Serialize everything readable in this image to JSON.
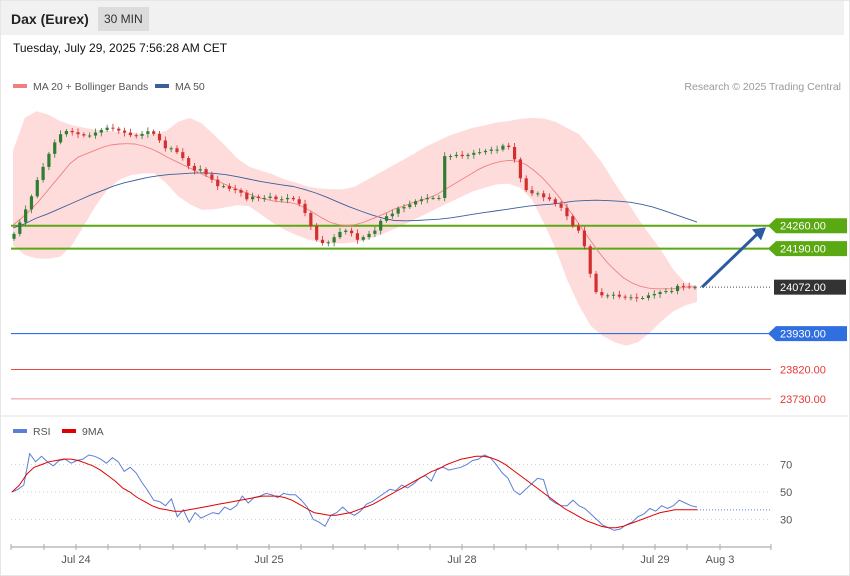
{
  "header": {
    "title": "Dax (Eurex)",
    "timeframe": "30 MIN"
  },
  "datetime": "Tuesday, July 29, 2025 7:56:28 AM CET",
  "legend": {
    "ma20": "MA 20 + Bollinger Bands",
    "ma50": "MA 50",
    "credit": "Research © 2025 Trading Central"
  },
  "rsi_legend": {
    "rsi": "RSI",
    "ma9": "9MA"
  },
  "colors": {
    "ma20": "#f08080",
    "ma50": "#3a5f9a",
    "bands": "#ffd6d6",
    "up": "#2e7d32",
    "down": "#d32f2f",
    "green_level": "#5aa812",
    "blue_level": "#2f6fe0",
    "red_level": "#e53935",
    "arrow": "#2c5aa0",
    "rsi": "#5b7fd6",
    "rsi_ma": "#e00000"
  },
  "chart_data": [
    {
      "type": "candlestick",
      "title": "Dax (Eurex)",
      "timeframe": "30 MIN",
      "x_ticks": [
        "Jul 24",
        "Jul 25",
        "Jul 28",
        "Jul 29",
        "Aug 3"
      ],
      "ylim": [
        23690,
        24660
      ],
      "levels": [
        {
          "value": 24260,
          "label": "24260.00",
          "kind": "resistance",
          "color": "#5aa812"
        },
        {
          "value": 24190,
          "label": "24190.00",
          "kind": "resistance",
          "color": "#5aa812"
        },
        {
          "value": 24072,
          "label": "24072.00",
          "kind": "last",
          "color": "#333333"
        },
        {
          "value": 23930,
          "label": "23930.00",
          "kind": "pivot",
          "color": "#2f6fe0"
        },
        {
          "value": 23820,
          "label": "23820.00",
          "kind": "support",
          "color": "#e53935"
        },
        {
          "value": 23730,
          "label": "23730.00",
          "kind": "support",
          "color": "#e53935"
        }
      ],
      "closes": [
        24235,
        24270,
        24310,
        24350,
        24400,
        24440,
        24480,
        24515,
        24540,
        24550,
        24546,
        24540,
        24536,
        24536,
        24545,
        24553,
        24560,
        24557,
        24551,
        24545,
        24537,
        24535,
        24541,
        24549,
        24541,
        24521,
        24497,
        24497,
        24485,
        24467,
        24443,
        24429,
        24433,
        24417,
        24401,
        24381,
        24381,
        24373,
        24369,
        24361,
        24341,
        24349,
        24345,
        24345,
        24349,
        24341,
        24341,
        24345,
        24341,
        24327,
        24299,
        24259,
        24217,
        24207,
        24209,
        24225,
        24241,
        24245,
        24237,
        24217,
        24225,
        24235,
        24245,
        24275,
        24289,
        24297,
        24313,
        24317,
        24325,
        24335,
        24341,
        24345,
        24345,
        24345,
        24473,
        24473,
        24477,
        24473,
        24477,
        24483,
        24485,
        24489,
        24493,
        24493,
        24505,
        24501,
        24463,
        24405,
        24369,
        24359,
        24359,
        24347,
        24341,
        24327,
        24315,
        24289,
        24259,
        24245,
        24197,
        24113,
        24057,
        24047,
        24047,
        24049,
        24043,
        24041,
        24041,
        24039,
        24039,
        24047,
        24051,
        24057,
        24060,
        24060,
        24076,
        24074,
        24072,
        24072
      ],
      "ma20": [
        24262,
        24282,
        24305,
        24330,
        24360,
        24390,
        24420,
        24450,
        24470,
        24480,
        24490,
        24500,
        24507,
        24510,
        24511,
        24510,
        24504,
        24495,
        24483,
        24469,
        24457,
        24445,
        24433,
        24420,
        24409,
        24398,
        24387,
        24377,
        24367,
        24357,
        24347,
        24341,
        24336,
        24333,
        24331,
        24325,
        24313,
        24298,
        24283,
        24270,
        24263,
        24260,
        24263,
        24270,
        24280,
        24290,
        24301,
        24313,
        24320,
        24330,
        24337,
        24345,
        24355,
        24370,
        24385,
        24400,
        24415,
        24430,
        24442,
        24451,
        24457,
        24460,
        24457,
        24447,
        24429,
        24407,
        24380,
        24350,
        24318,
        24283,
        24247,
        24212,
        24177,
        24147,
        24122,
        24100,
        24085,
        24075,
        24069,
        24067,
        24067,
        24067,
        24070,
        24073,
        24073
      ],
      "ma50": [
        24253,
        24265,
        24282,
        24295,
        24310,
        24325,
        24340,
        24355,
        24368,
        24382,
        24392,
        24400,
        24408,
        24413,
        24417,
        24419,
        24421,
        24422,
        24420,
        24416,
        24410,
        24403,
        24396,
        24390,
        24385,
        24380,
        24371,
        24360,
        24347,
        24332,
        24318,
        24305,
        24293,
        24283,
        24276,
        24275,
        24276,
        24278,
        24280,
        24284,
        24289,
        24295,
        24300,
        24305,
        24310,
        24315,
        24320,
        24323,
        24326,
        24330,
        24335,
        24337,
        24338,
        24337,
        24335,
        24332,
        24326,
        24318,
        24307,
        24295,
        24283,
        24271
      ],
      "bb_upper": [
        24490,
        24590,
        24610,
        24600,
        24580,
        24568,
        24560,
        24553,
        24550,
        24547,
        24544,
        24541,
        24541,
        24550,
        24578,
        24590,
        24573,
        24540,
        24505,
        24466,
        24441,
        24429,
        24418,
        24402,
        24392,
        24380,
        24374,
        24372,
        24371,
        24380,
        24400,
        24420,
        24440,
        24460,
        24480,
        24502,
        24519,
        24536,
        24548,
        24560,
        24567,
        24576,
        24580,
        24587,
        24590,
        24588,
        24578,
        24559,
        24540,
        24497,
        24450,
        24392,
        24338,
        24283,
        24232,
        24183,
        24125,
        24086,
        24073
      ],
      "bb_lower": [
        24200,
        24170,
        24160,
        24159,
        24165,
        24200,
        24260,
        24320,
        24370,
        24400,
        24415,
        24420,
        24420,
        24390,
        24350,
        24326,
        24309,
        24310,
        24316,
        24323,
        24320,
        24295,
        24270,
        24248,
        24232,
        24218,
        24210,
        24206,
        24206,
        24210,
        24217,
        24230,
        24245,
        24260,
        24278,
        24296,
        24314,
        24331,
        24348,
        24365,
        24376,
        24386,
        24389,
        24376,
        24340,
        24270,
        24190,
        24093,
        24015,
        23953,
        23923,
        23904,
        23893,
        23904,
        23932,
        23968,
        23998,
        24016,
        24027
      ]
    },
    {
      "type": "line",
      "title": "RSI",
      "series": [
        {
          "name": "RSI",
          "values": [
            50,
            52,
            55,
            78,
            72,
            76,
            72,
            69,
            73,
            74,
            71,
            73,
            74,
            77,
            76,
            74,
            71,
            75,
            72,
            65,
            68,
            64,
            57,
            51,
            44,
            43,
            40,
            45,
            32,
            37,
            28,
            35,
            31,
            33,
            35,
            34,
            39,
            37,
            40,
            47,
            42,
            46,
            47,
            49,
            48,
            46,
            49,
            48,
            48,
            44,
            39,
            30,
            28,
            25,
            33,
            35,
            39,
            35,
            33,
            36,
            41,
            43,
            46,
            49,
            52,
            51,
            55,
            53,
            56,
            60,
            62,
            58,
            67,
            68,
            66,
            67,
            68,
            70,
            73,
            74,
            77,
            75,
            70,
            64,
            60,
            51,
            48,
            52,
            56,
            60,
            59,
            45,
            42,
            40,
            40,
            44,
            40,
            38,
            34,
            30,
            26,
            24,
            22,
            23,
            26,
            28,
            32,
            34,
            38,
            36,
            40,
            38,
            40,
            44,
            42,
            40,
            39
          ],
          "color": "#5b7fd6"
        },
        {
          "name": "9MA",
          "values": [
            50,
            55,
            63,
            68,
            70,
            72,
            73,
            74,
            74,
            73,
            71,
            69,
            66,
            62,
            58,
            53,
            50,
            46,
            43,
            40,
            38,
            37,
            36,
            36,
            37,
            38,
            39,
            40,
            41,
            42,
            43,
            44,
            45,
            46,
            47,
            47,
            47,
            46,
            44,
            41,
            38,
            35,
            34,
            33,
            33,
            34,
            35,
            37,
            39,
            41,
            44,
            47,
            50,
            53,
            56,
            59,
            62,
            65,
            67,
            70,
            72,
            74,
            75,
            76,
            76,
            75,
            73,
            70,
            66,
            62,
            58,
            54,
            50,
            46,
            42,
            38,
            35,
            32,
            29,
            27,
            25,
            24,
            24,
            25,
            27,
            29,
            31,
            33,
            35,
            36,
            37,
            37,
            37,
            37
          ],
          "color": "#e00000"
        }
      ],
      "y_ticks": [
        70,
        50,
        30
      ],
      "ylim": [
        15,
        85
      ]
    }
  ]
}
